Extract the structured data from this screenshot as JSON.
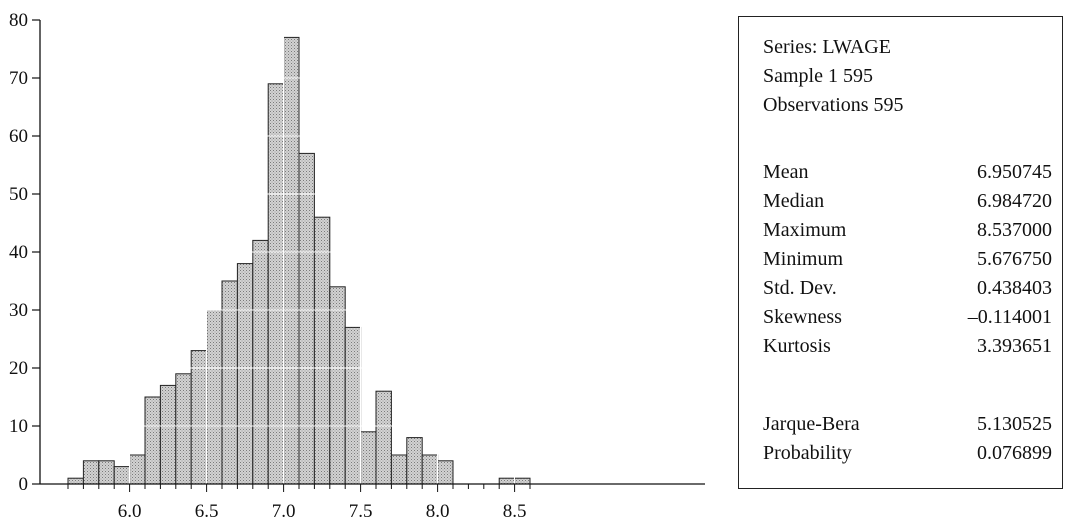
{
  "chart_data": {
    "type": "bar",
    "bin_width": 0.1,
    "x": [
      5.6,
      5.7,
      5.8,
      5.9,
      6.0,
      6.1,
      6.2,
      6.3,
      6.4,
      6.5,
      6.6,
      6.7,
      6.8,
      6.9,
      7.0,
      7.1,
      7.2,
      7.3,
      7.4,
      7.5,
      7.6,
      7.7,
      7.8,
      7.9,
      8.0,
      8.1,
      8.2,
      8.3,
      8.4,
      8.5
    ],
    "values": [
      1,
      4,
      4,
      3,
      5,
      15,
      17,
      19,
      23,
      30,
      35,
      38,
      42,
      69,
      77,
      57,
      46,
      34,
      27,
      9,
      16,
      5,
      8,
      5,
      4,
      0,
      0,
      0,
      1,
      1
    ],
    "xlim": [
      5.55,
      8.65
    ],
    "ylim": [
      0,
      80
    ],
    "xticks": [
      "6.0",
      "6.5",
      "7.0",
      "7.5",
      "8.0",
      "8.5"
    ],
    "xtick_values": [
      6.0,
      6.5,
      7.0,
      7.5,
      8.0,
      8.5
    ],
    "yticks": [
      "0",
      "10",
      "20",
      "30",
      "40",
      "50",
      "60",
      "70",
      "80"
    ],
    "ytick_values": [
      0,
      10,
      20,
      30,
      40,
      50,
      60,
      70,
      80
    ],
    "bar_fill": "#c8c8c8",
    "bar_edge": "#222222",
    "grid_color": "#ffffff"
  },
  "stats": {
    "header": [
      "Series: LWAGE",
      "Sample 1 595",
      "Observations 595"
    ],
    "group1": [
      {
        "name": "Mean",
        "value": "6.950745"
      },
      {
        "name": "Median",
        "value": "6.984720"
      },
      {
        "name": "Maximum",
        "value": "8.537000"
      },
      {
        "name": "Minimum",
        "value": "5.676750"
      },
      {
        "name": "Std. Dev.",
        "value": "0.438403"
      },
      {
        "name": "Skewness",
        "value": "–0.114001"
      },
      {
        "name": "Kurtosis",
        "value": "3.393651"
      }
    ],
    "group2": [
      {
        "name": "Jarque-Bera",
        "value": "5.130525"
      },
      {
        "name": "Probability",
        "value": "0.076899"
      }
    ]
  }
}
